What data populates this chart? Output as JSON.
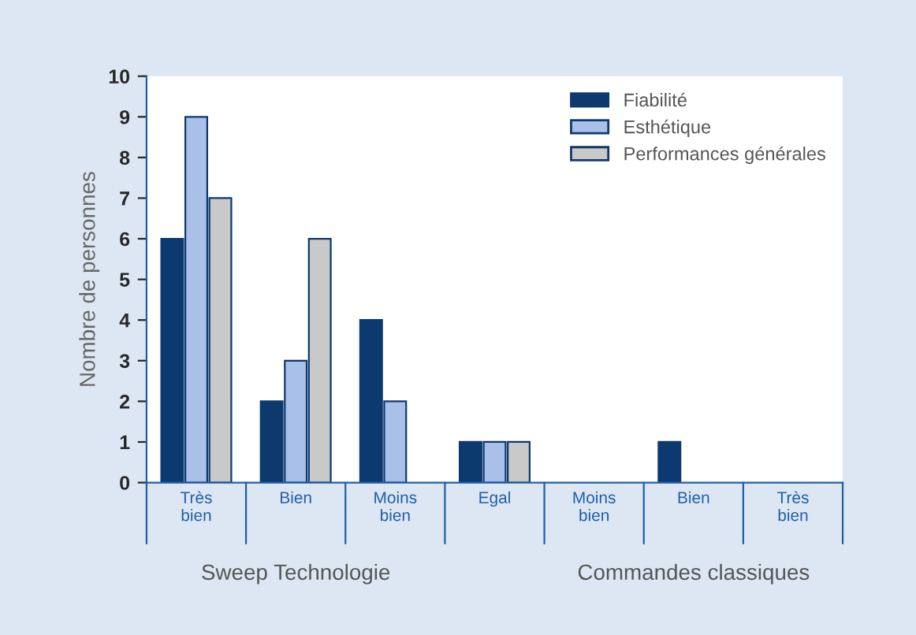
{
  "chart_data": {
    "type": "bar",
    "ylabel": "Nombre de personnes",
    "categories": [
      "Très\nbien",
      "Bien",
      "Moins\nbien",
      "Egal",
      "Moins\nbien",
      "Bien",
      "Très\nbien"
    ],
    "series": [
      {
        "name": "Fiabilité",
        "color": "#0d3a6e",
        "values": [
          6,
          2,
          4,
          1,
          null,
          1,
          null
        ]
      },
      {
        "name": "Esthétique",
        "color": "#a9c0e8",
        "values": [
          9,
          3,
          2,
          1,
          null,
          null,
          null
        ]
      },
      {
        "name": "Performances générales",
        "color": "#c9c9c9",
        "values": [
          7,
          6,
          null,
          1,
          null,
          null,
          null
        ]
      }
    ],
    "ylim": [
      0,
      10
    ],
    "yticks": [
      0,
      1,
      2,
      3,
      4,
      5,
      6,
      7,
      8,
      9,
      10
    ],
    "grid": false,
    "legend": "top right",
    "annotations": [
      "Sweep Technologie",
      "Commandes classiques"
    ]
  }
}
